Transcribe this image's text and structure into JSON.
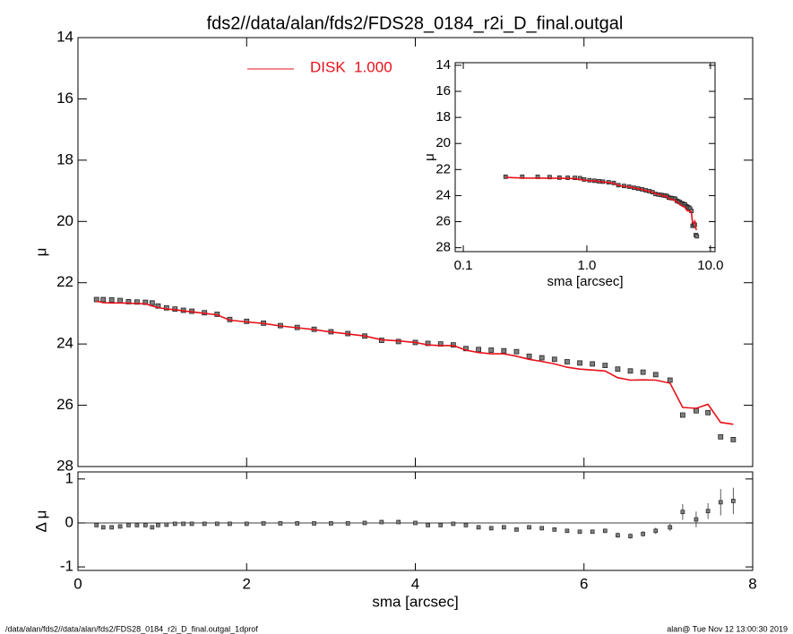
{
  "footer_left": "/data/alan/fds2//data/alan/fds2/FDS28_0184_r2i_D_final.outgal_1dprof",
  "footer_right": "alan@  Tue Nov 12 13:00:30 2019",
  "chart_data": [
    {
      "type": "scatter",
      "title": "fds2//data/alan/fds2/FDS28_0184_r2i_D_final.outgal",
      "ylabel": "μ",
      "x": [
        0.22,
        0.3,
        0.4,
        0.5,
        0.6,
        0.7,
        0.8,
        0.88,
        0.95,
        1.05,
        1.15,
        1.25,
        1.35,
        1.5,
        1.65,
        1.8,
        2.0,
        2.2,
        2.4,
        2.6,
        2.8,
        3.0,
        3.2,
        3.4,
        3.6,
        3.8,
        4.0,
        4.15,
        4.3,
        4.45,
        4.6,
        4.75,
        4.9,
        5.05,
        5.2,
        5.35,
        5.5,
        5.65,
        5.8,
        5.95,
        6.1,
        6.25,
        6.4,
        6.55,
        6.7,
        6.85,
        7.02,
        7.17,
        7.33,
        7.47,
        7.62,
        7.77
      ],
      "series": [
        {
          "kind": "points",
          "color": "#808080",
          "values": [
            22.55,
            22.55,
            22.56,
            22.58,
            22.62,
            22.63,
            22.64,
            22.66,
            22.76,
            22.82,
            22.86,
            22.9,
            22.93,
            22.98,
            23.03,
            23.2,
            23.26,
            23.32,
            23.4,
            23.46,
            23.52,
            23.6,
            23.66,
            23.74,
            23.88,
            23.92,
            23.95,
            23.98,
            24.0,
            24.03,
            24.15,
            24.18,
            24.2,
            24.22,
            24.25,
            24.4,
            24.45,
            24.5,
            24.58,
            24.62,
            24.65,
            24.7,
            24.82,
            24.88,
            24.92,
            25.0,
            25.18,
            26.32,
            26.18,
            26.24,
            27.03,
            27.12
          ]
        },
        {
          "kind": "line",
          "name": "DISK  1.000",
          "color": "#e8101a",
          "values": [
            22.6,
            22.65,
            22.66,
            22.66,
            22.67,
            22.68,
            22.69,
            22.76,
            22.81,
            22.86,
            22.88,
            22.92,
            22.95,
            23.0,
            23.05,
            23.22,
            23.28,
            23.33,
            23.41,
            23.47,
            23.53,
            23.61,
            23.67,
            23.74,
            23.86,
            23.9,
            23.95,
            24.03,
            24.05,
            24.05,
            24.2,
            24.28,
            24.32,
            24.32,
            24.4,
            24.5,
            24.57,
            24.65,
            24.76,
            24.82,
            24.85,
            24.88,
            25.1,
            25.18,
            25.17,
            25.18,
            25.28,
            26.07,
            26.1,
            25.97,
            26.56,
            26.62
          ]
        }
      ],
      "xlim": [
        0,
        8
      ],
      "xticks": [
        0,
        2,
        4,
        6,
        8
      ],
      "ylim": [
        28,
        14
      ],
      "yticks": [
        14,
        16,
        18,
        20,
        22,
        24,
        26,
        28
      ]
    },
    {
      "type": "errorbar",
      "xlabel": "sma [arcsec]",
      "ylabel": "Δ μ",
      "values": [
        -0.05,
        -0.1,
        -0.1,
        -0.08,
        -0.05,
        -0.05,
        -0.05,
        -0.1,
        -0.05,
        -0.04,
        -0.02,
        -0.02,
        -0.02,
        -0.02,
        -0.02,
        -0.02,
        -0.02,
        -0.01,
        -0.01,
        -0.01,
        -0.01,
        -0.01,
        -0.01,
        0.0,
        0.02,
        0.02,
        0.0,
        -0.05,
        -0.05,
        -0.02,
        -0.05,
        -0.1,
        -0.12,
        -0.1,
        -0.15,
        -0.1,
        -0.12,
        -0.15,
        -0.18,
        -0.2,
        -0.2,
        -0.18,
        -0.28,
        -0.3,
        -0.25,
        -0.18,
        -0.1,
        0.25,
        0.08,
        0.27,
        0.47,
        0.5
      ],
      "errors": [
        0.02,
        0.02,
        0.02,
        0.02,
        0.02,
        0.02,
        0.02,
        0.02,
        0.02,
        0.02,
        0.02,
        0.02,
        0.02,
        0.02,
        0.02,
        0.02,
        0.02,
        0.02,
        0.02,
        0.02,
        0.02,
        0.02,
        0.02,
        0.02,
        0.02,
        0.02,
        0.02,
        0.02,
        0.02,
        0.02,
        0.03,
        0.03,
        0.03,
        0.03,
        0.03,
        0.03,
        0.03,
        0.03,
        0.03,
        0.03,
        0.03,
        0.04,
        0.06,
        0.06,
        0.06,
        0.07,
        0.08,
        0.18,
        0.18,
        0.18,
        0.3,
        0.3
      ],
      "zero_line": true,
      "xlim": [
        0,
        8
      ],
      "xticks": [
        0,
        2,
        4,
        6,
        8
      ],
      "ylim": [
        -1.08,
        1.16
      ],
      "yticks": [
        -1,
        0,
        1
      ]
    },
    {
      "type": "inset",
      "xlabel": "sma [arcsec]",
      "ylabel": "μ",
      "xlog": true,
      "xlim": [
        0.086,
        10.9
      ],
      "xticks": [
        0.1,
        {
          "value": 1,
          "label": "1.0"
        },
        {
          "value": 10,
          "label": "10.0"
        }
      ],
      "ylim": [
        28.3,
        13.8
      ],
      "yticks": [
        14,
        16,
        18,
        20,
        22,
        24,
        26,
        28
      ]
    }
  ]
}
